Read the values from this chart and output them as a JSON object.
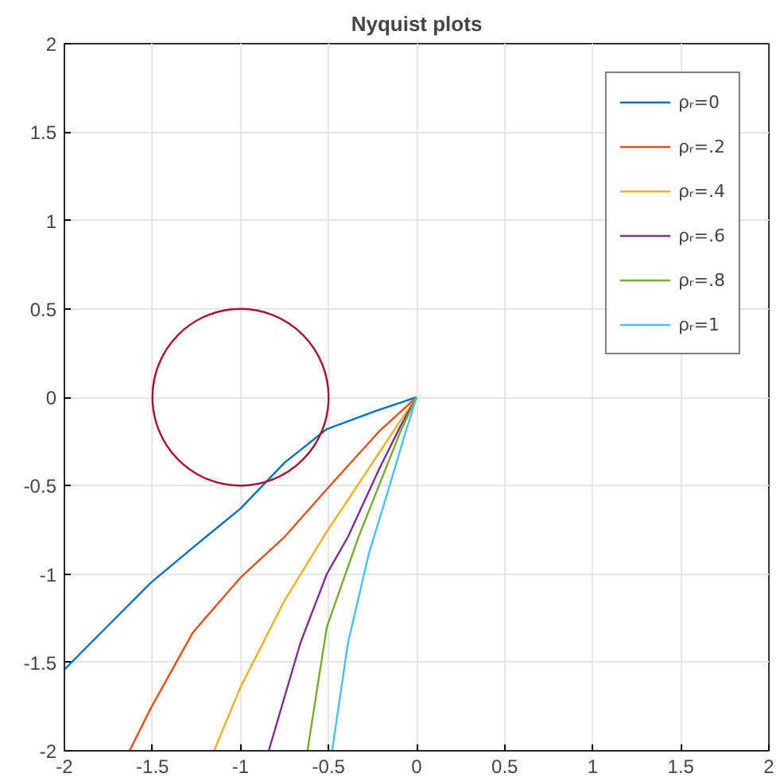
{
  "chart_data": {
    "type": "line",
    "title": "Nyquist plots",
    "xlim": [
      -2,
      2
    ],
    "ylim": [
      -2,
      2
    ],
    "xticks": [
      -2,
      -1.5,
      -1,
      -0.5,
      0,
      0.5,
      1,
      1.5,
      2
    ],
    "yticks": [
      -2,
      -1.5,
      -1,
      -0.5,
      0,
      0.5,
      1,
      1.5,
      2
    ],
    "grid": true,
    "legend": "top right",
    "series": [
      {
        "name": "ρᵣ=0",
        "color": "#0072bd",
        "x": [
          0,
          -0.24,
          -0.51,
          -0.75,
          -1,
          -1.27,
          -1.51,
          -1.75,
          -2
        ],
        "values": [
          0,
          -0.08,
          -0.18,
          -0.37,
          -0.63,
          -0.85,
          -1.05,
          -1.29,
          -1.54
        ]
      },
      {
        "name": "ρᵣ=.2",
        "color": "#d95319",
        "x": [
          0,
          -0.21,
          -0.51,
          -0.75,
          -1,
          -1.27,
          -1.51,
          -1.63
        ],
        "values": [
          0,
          -0.19,
          -0.52,
          -0.79,
          -1.02,
          -1.33,
          -1.76,
          -2
        ]
      },
      {
        "name": "ρᵣ=.4",
        "color": "#edb120",
        "x": [
          0,
          -0.09,
          -0.21,
          -0.39,
          -0.51,
          -0.75,
          -1,
          -1.15
        ],
        "values": [
          0,
          -0.13,
          -0.31,
          -0.58,
          -0.76,
          -1.15,
          -1.64,
          -2
        ]
      },
      {
        "name": "ρᵣ=.6",
        "color": "#7e2f8e",
        "x": [
          0,
          -0.09,
          -0.21,
          -0.39,
          -0.51,
          -0.66,
          -0.84
        ],
        "values": [
          0,
          -0.16,
          -0.4,
          -0.79,
          -1.0,
          -1.39,
          -2
        ]
      },
      {
        "name": "ρᵣ=.8",
        "color": "#77ac30",
        "x": [
          0,
          -0.09,
          -0.21,
          -0.33,
          -0.51,
          -0.62
        ],
        "values": [
          0,
          -0.19,
          -0.49,
          -0.79,
          -1.3,
          -2
        ]
      },
      {
        "name": "ρᵣ=1",
        "color": "#4dbeee",
        "x": [
          0,
          -0.07,
          -0.15,
          -0.27,
          -0.39,
          -0.48
        ],
        "values": [
          0,
          -0.22,
          -0.49,
          -0.88,
          -1.39,
          -2
        ]
      }
    ]
  }
}
